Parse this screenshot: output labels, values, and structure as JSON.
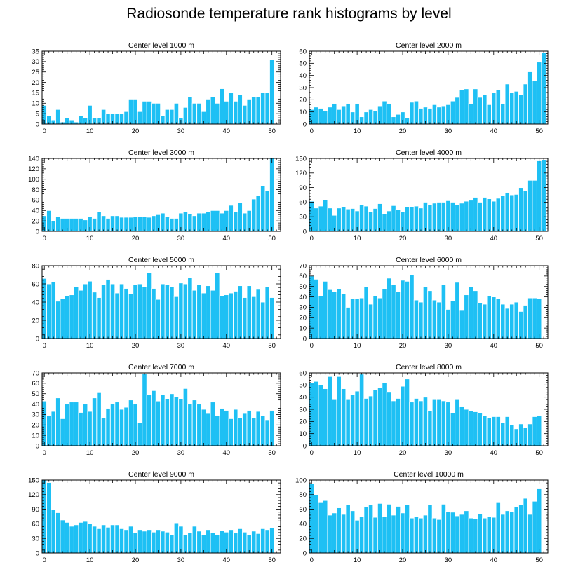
{
  "title": "Radiosonde temperature rank histograms by level",
  "colors": {
    "bar": "#1ec0f4",
    "bar_edge": "#ffffff",
    "axis": "#000000"
  },
  "chart_data": [
    {
      "type": "bar",
      "title": "Center level 1000 m",
      "xlabel": "",
      "ylabel": "",
      "x_ticks": [
        0,
        10,
        20,
        30,
        40,
        50
      ],
      "ylim": [
        0,
        35
      ],
      "y_ticks": [
        0,
        5,
        10,
        15,
        20,
        25,
        30,
        35
      ],
      "values": [
        9,
        4,
        2,
        7,
        1,
        3,
        2,
        1,
        4,
        3,
        9,
        3,
        3,
        7,
        5,
        5,
        5,
        5,
        6,
        12,
        12,
        6,
        11,
        11,
        10,
        10,
        4,
        7,
        7,
        10,
        3,
        8,
        13,
        10,
        10,
        6,
        12,
        13,
        10,
        17,
        11,
        15,
        11,
        14,
        9,
        12,
        13,
        13,
        15,
        15,
        31
      ]
    },
    {
      "type": "bar",
      "title": "Center level 2000 m",
      "xlabel": "",
      "ylabel": "",
      "x_ticks": [
        0,
        10,
        20,
        30,
        40,
        50
      ],
      "ylim": [
        0,
        60
      ],
      "y_ticks": [
        0,
        10,
        20,
        30,
        40,
        50,
        60
      ],
      "values": [
        12,
        14,
        13,
        11,
        14,
        17,
        12,
        15,
        17,
        10,
        17,
        6,
        10,
        12,
        11,
        15,
        19,
        17,
        6,
        8,
        10,
        5,
        18,
        19,
        13,
        14,
        13,
        16,
        14,
        15,
        16,
        19,
        22,
        28,
        29,
        17,
        29,
        22,
        24,
        16,
        26,
        28,
        17,
        33,
        26,
        27,
        24,
        33,
        43,
        36,
        51,
        59
      ]
    },
    {
      "type": "bar",
      "title": "Center level 3000 m",
      "xlabel": "",
      "ylabel": "",
      "x_ticks": [
        0,
        10,
        20,
        30,
        40,
        50
      ],
      "ylim": [
        0,
        140
      ],
      "y_ticks": [
        0,
        20,
        40,
        60,
        80,
        100,
        120,
        140
      ],
      "values": [
        30,
        40,
        20,
        28,
        25,
        25,
        25,
        25,
        25,
        22,
        28,
        25,
        37,
        30,
        25,
        30,
        30,
        27,
        27,
        27,
        28,
        28,
        28,
        27,
        30,
        32,
        35,
        28,
        25,
        25,
        35,
        37,
        33,
        30,
        35,
        35,
        38,
        40,
        40,
        35,
        40,
        50,
        38,
        55,
        35,
        40,
        62,
        68,
        88,
        78,
        140
      ]
    },
    {
      "type": "bar",
      "title": "Center level 4000 m",
      "xlabel": "",
      "ylabel": "",
      "x_ticks": [
        0,
        10,
        20,
        30,
        40,
        50
      ],
      "ylim": [
        0,
        150
      ],
      "y_ticks": [
        0,
        30,
        60,
        90,
        120,
        150
      ],
      "values": [
        62,
        48,
        52,
        65,
        48,
        33,
        48,
        50,
        46,
        47,
        42,
        55,
        52,
        40,
        47,
        57,
        36,
        42,
        53,
        45,
        40,
        50,
        50,
        52,
        48,
        60,
        55,
        58,
        60,
        60,
        63,
        60,
        55,
        58,
        62,
        64,
        70,
        60,
        70,
        67,
        62,
        68,
        73,
        80,
        75,
        76,
        90,
        83,
        105,
        105,
        145,
        147
      ]
    },
    {
      "type": "bar",
      "title": "Center level 5000 m",
      "xlabel": "",
      "ylabel": "",
      "x_ticks": [
        0,
        10,
        20,
        30,
        40,
        50
      ],
      "ylim": [
        0,
        80
      ],
      "y_ticks": [
        0,
        20,
        40,
        60,
        80
      ],
      "values": [
        66,
        60,
        62,
        41,
        44,
        47,
        48,
        57,
        53,
        60,
        63,
        51,
        45,
        59,
        65,
        60,
        50,
        60,
        55,
        49,
        59,
        60,
        57,
        72,
        55,
        43,
        60,
        59,
        57,
        46,
        61,
        60,
        67,
        53,
        59,
        50,
        58,
        53,
        72,
        47,
        48,
        50,
        52,
        58,
        45,
        58,
        46,
        54,
        40,
        57,
        45
      ]
    },
    {
      "type": "bar",
      "title": "Center level 6000 m",
      "xlabel": "",
      "ylabel": "",
      "x_ticks": [
        0,
        10,
        20,
        30,
        40,
        50
      ],
      "ylim": [
        0,
        70
      ],
      "y_ticks": [
        0,
        10,
        20,
        30,
        40,
        50,
        60,
        70
      ],
      "values": [
        60,
        57,
        41,
        55,
        47,
        45,
        48,
        43,
        30,
        38,
        38,
        39,
        50,
        33,
        41,
        39,
        48,
        58,
        52,
        45,
        56,
        55,
        61,
        37,
        35,
        50,
        46,
        37,
        35,
        52,
        28,
        36,
        54,
        27,
        42,
        50,
        46,
        34,
        33,
        41,
        40,
        38,
        33,
        29,
        33,
        35,
        26,
        32,
        39,
        39,
        38
      ]
    },
    {
      "type": "bar",
      "title": "Center level 7000 m",
      "xlabel": "",
      "ylabel": "",
      "x_ticks": [
        0,
        10,
        20,
        30,
        40,
        50
      ],
      "ylim": [
        0,
        70
      ],
      "y_ticks": [
        0,
        10,
        20,
        30,
        40,
        50,
        60,
        70
      ],
      "values": [
        43,
        29,
        33,
        46,
        26,
        40,
        42,
        42,
        32,
        40,
        33,
        46,
        51,
        27,
        36,
        40,
        42,
        35,
        37,
        44,
        40,
        22,
        69,
        49,
        53,
        43,
        49,
        45,
        50,
        47,
        45,
        55,
        40,
        44,
        40,
        35,
        31,
        42,
        29,
        36,
        34,
        26,
        35,
        27,
        31,
        34,
        27,
        33,
        29,
        25,
        34
      ]
    },
    {
      "type": "bar",
      "title": "Center level 8000 m",
      "xlabel": "",
      "ylabel": "",
      "x_ticks": [
        0,
        10,
        20,
        30,
        40,
        50
      ],
      "ylim": [
        0,
        60
      ],
      "y_ticks": [
        0,
        10,
        20,
        30,
        40,
        50,
        60
      ],
      "values": [
        52,
        53,
        50,
        47,
        57,
        38,
        57,
        47,
        38,
        42,
        45,
        59,
        39,
        41,
        46,
        48,
        52,
        44,
        37,
        39,
        49,
        55,
        36,
        39,
        37,
        40,
        29,
        38,
        38,
        37,
        36,
        27,
        38,
        32,
        30,
        29,
        28,
        27,
        25,
        23,
        24,
        24,
        19,
        24,
        17,
        14,
        18,
        15,
        18,
        24,
        25
      ]
    },
    {
      "type": "bar",
      "title": "Center level 9000 m",
      "xlabel": "",
      "ylabel": "",
      "x_ticks": [
        0,
        10,
        20,
        30,
        40,
        50
      ],
      "ylim": [
        0,
        150
      ],
      "y_ticks": [
        0,
        30,
        60,
        90,
        120,
        150
      ],
      "values": [
        150,
        145,
        90,
        83,
        68,
        63,
        55,
        58,
        63,
        65,
        60,
        55,
        50,
        58,
        53,
        58,
        58,
        50,
        48,
        55,
        42,
        48,
        45,
        48,
        43,
        48,
        45,
        43,
        37,
        62,
        55,
        38,
        42,
        55,
        45,
        38,
        48,
        42,
        38,
        46,
        43,
        48,
        41,
        50,
        43,
        38,
        45,
        40,
        50,
        48,
        52
      ]
    },
    {
      "type": "bar",
      "title": "Center level 10000 m",
      "xlabel": "",
      "ylabel": "",
      "x_ticks": [
        0,
        10,
        20,
        30,
        40,
        50
      ],
      "ylim": [
        0,
        100
      ],
      "y_ticks": [
        0,
        20,
        40,
        60,
        80,
        100
      ],
      "values": [
        95,
        80,
        70,
        72,
        52,
        55,
        62,
        53,
        66,
        58,
        45,
        50,
        63,
        66,
        49,
        68,
        50,
        67,
        52,
        64,
        55,
        66,
        48,
        50,
        48,
        52,
        66,
        48,
        46,
        67,
        57,
        56,
        51,
        53,
        58,
        48,
        47,
        54,
        48,
        50,
        49,
        70,
        53,
        58,
        57,
        63,
        66,
        75,
        53,
        71,
        88
      ]
    }
  ]
}
